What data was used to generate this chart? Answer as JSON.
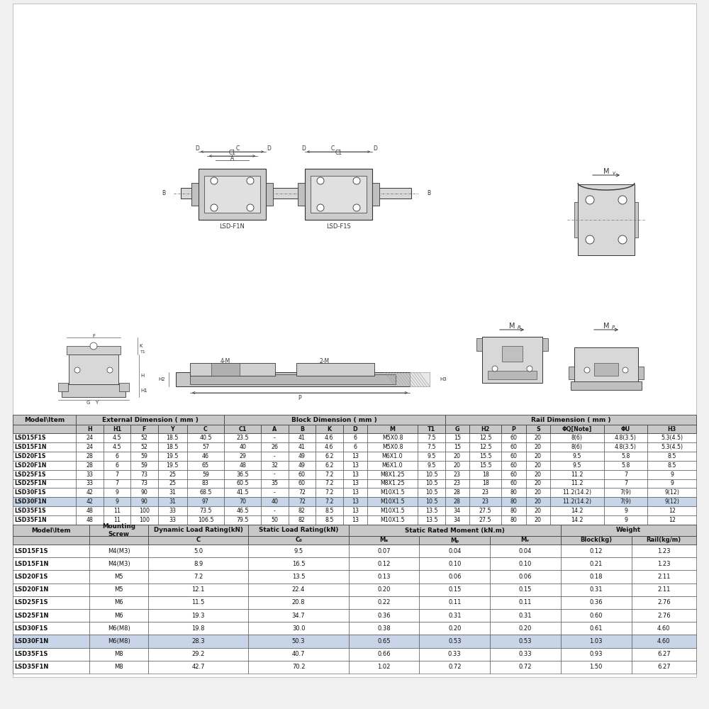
{
  "bg_color": "#f0f0f0",
  "table_bg": "#ffffff",
  "highlight_color": "#c8d4e8",
  "header_bg": "#c8c8c8",
  "border_color": "#444444",
  "text_color": "#111111",
  "diagram_bg": "#ffffff",
  "drawing_color": "#333333",
  "drawing_fill": "#d8d8d8",
  "table1_data": [
    [
      "LSD15F1S",
      "24",
      "4.5",
      "52",
      "18.5",
      "40.5",
      "23.5",
      "-",
      "41",
      "4.6",
      "6",
      "M5X0.8",
      "7.5",
      "15",
      "12.5",
      "60",
      "20",
      "8(6)",
      "4.8(3.5)",
      "5.3(4.5)"
    ],
    [
      "LSD15F1N",
      "24",
      "4.5",
      "52",
      "18.5",
      "57",
      "40",
      "26",
      "41",
      "4.6",
      "6",
      "M5X0.8",
      "7.5",
      "15",
      "12.5",
      "60",
      "20",
      "8(6)",
      "4.8(3.5)",
      "5.3(4.5)"
    ],
    [
      "LSD20F1S",
      "28",
      "6",
      "59",
      "19.5",
      "46",
      "29",
      "-",
      "49",
      "6.2",
      "13",
      "M6X1.0",
      "9.5",
      "20",
      "15.5",
      "60",
      "20",
      "9.5",
      "5.8",
      "8.5"
    ],
    [
      "LSD20F1N",
      "28",
      "6",
      "59",
      "19.5",
      "65",
      "48",
      "32",
      "49",
      "6.2",
      "13",
      "M6X1.0",
      "9.5",
      "20",
      "15.5",
      "60",
      "20",
      "9.5",
      "5.8",
      "8.5"
    ],
    [
      "LSD25F1S",
      "33",
      "7",
      "73",
      "25",
      "59",
      "36.5",
      "-",
      "60",
      "7.2",
      "13",
      "M8X1.25",
      "10.5",
      "23",
      "18",
      "60",
      "20",
      "11.2",
      "7",
      "9"
    ],
    [
      "LSD25F1N",
      "33",
      "7",
      "73",
      "25",
      "83",
      "60.5",
      "35",
      "60",
      "7.2",
      "13",
      "M8X1.25",
      "10.5",
      "23",
      "18",
      "60",
      "20",
      "11.2",
      "7",
      "9"
    ],
    [
      "LSD30F1S",
      "42",
      "9",
      "90",
      "31",
      "68.5",
      "41.5",
      "-",
      "72",
      "7.2",
      "13",
      "M10X1.5",
      "10.5",
      "28",
      "23",
      "80",
      "20",
      "11.2(14.2)",
      "7(9)",
      "9(12)"
    ],
    [
      "LSD30F1N",
      "42",
      "9",
      "90",
      "31",
      "97",
      "70",
      "40",
      "72",
      "7.2",
      "13",
      "M10X1.5",
      "10.5",
      "28",
      "23",
      "80",
      "20",
      "11.2(14.2)",
      "7(9)",
      "9(12)"
    ],
    [
      "LSD35F1S",
      "48",
      "11",
      "100",
      "33",
      "73.5",
      "46.5",
      "-",
      "82",
      "8.5",
      "13",
      "M10X1.5",
      "13.5",
      "34",
      "27.5",
      "80",
      "20",
      "14.2",
      "9",
      "12"
    ],
    [
      "LSD35F1N",
      "48",
      "11",
      "100",
      "33",
      "106.5",
      "79.5",
      "50",
      "82",
      "8.5",
      "13",
      "M10X1.5",
      "13.5",
      "34",
      "27.5",
      "80",
      "20",
      "14.2",
      "9",
      "12"
    ]
  ],
  "table1_highlight_row": 7,
  "table2_data": [
    [
      "LSD15F1S",
      "M4(M3)",
      "5.0",
      "9.5",
      "0.07",
      "0.04",
      "0.04",
      "0.12",
      "1.23"
    ],
    [
      "LSD15F1N",
      "M4(M3)",
      "8.9",
      "16.5",
      "0.12",
      "0.10",
      "0.10",
      "0.21",
      "1.23"
    ],
    [
      "LSD20F1S",
      "M5",
      "7.2",
      "13.5",
      "0.13",
      "0.06",
      "0.06",
      "0.18",
      "2.11"
    ],
    [
      "LSD20F1N",
      "M5",
      "12.1",
      "22.4",
      "0.20",
      "0.15",
      "0.15",
      "0.31",
      "2.11"
    ],
    [
      "LSD25F1S",
      "M6",
      "11.5",
      "20.8",
      "0.22",
      "0.11",
      "0.11",
      "0.36",
      "2.76"
    ],
    [
      "LSD25F1N",
      "M6",
      "19.3",
      "34.7",
      "0.36",
      "0.31",
      "0.31",
      "0.60",
      "2.76"
    ],
    [
      "LSD30F1S",
      "M6(M8)",
      "19.8",
      "30.0",
      "0.38",
      "0.20",
      "0.20",
      "0.61",
      "4.60"
    ],
    [
      "LSD30F1N",
      "M6(M8)",
      "28.3",
      "50.3",
      "0.65",
      "0.53",
      "0.53",
      "1.03",
      "4.60"
    ],
    [
      "LSD35F1S",
      "M8",
      "29.2",
      "40.7",
      "0.66",
      "0.33",
      "0.33",
      "0.93",
      "6.27"
    ],
    [
      "LSD35F1N",
      "M8",
      "42.7",
      "70.2",
      "1.02",
      "0.72",
      "0.72",
      "1.50",
      "6.27"
    ]
  ],
  "table2_highlight_row": 7
}
